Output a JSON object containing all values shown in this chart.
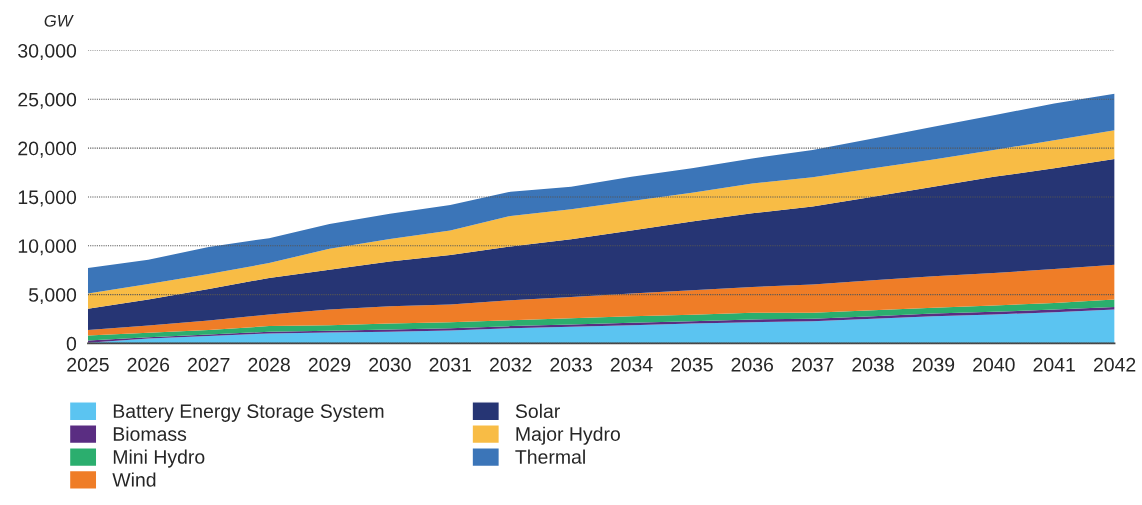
{
  "chart_data": {
    "type": "area",
    "stacked": true,
    "ylabel": "GW",
    "x": [
      2025,
      2026,
      2027,
      2028,
      2029,
      2030,
      2031,
      2032,
      2033,
      2034,
      2035,
      2036,
      2037,
      2038,
      2039,
      2040,
      2041,
      2042
    ],
    "series": [
      {
        "name": "Battery Energy Storage System",
        "color": "#5bc4f1",
        "values": [
          70,
          510,
          750,
          1020,
          1120,
          1190,
          1330,
          1560,
          1700,
          1870,
          2040,
          2170,
          2280,
          2520,
          2790,
          2960,
          3190,
          3470
        ]
      },
      {
        "name": "Biomass",
        "color": "#5a2d82",
        "values": [
          230,
          130,
          170,
          170,
          170,
          240,
          230,
          210,
          240,
          240,
          240,
          280,
          240,
          270,
          270,
          270,
          280,
          270
        ]
      },
      {
        "name": "Mini Hydro",
        "color": "#2bae6e",
        "values": [
          520,
          450,
          440,
          580,
          580,
          610,
          610,
          610,
          640,
          680,
          650,
          680,
          610,
          610,
          580,
          650,
          680,
          750
        ]
      },
      {
        "name": "Wind",
        "color": "#ef7d27",
        "values": [
          540,
          750,
          990,
          1190,
          1600,
          1770,
          1810,
          2040,
          2180,
          2310,
          2510,
          2650,
          2890,
          3060,
          3230,
          3330,
          3470,
          3570
        ]
      },
      {
        "name": "Solar",
        "color": "#263574",
        "values": [
          2180,
          2650,
          3230,
          3740,
          4080,
          4590,
          5070,
          5510,
          5920,
          6460,
          7040,
          7550,
          7990,
          8570,
          9180,
          9860,
          10310,
          10820
        ]
      },
      {
        "name": "Major Hydro",
        "color": "#f8bc45",
        "values": [
          1560,
          1600,
          1530,
          1530,
          2150,
          2300,
          2510,
          3130,
          3060,
          3030,
          2960,
          3060,
          3000,
          2900,
          2790,
          2730,
          2890,
          2960
        ]
      },
      {
        "name": "Thermal",
        "color": "#3b75b8",
        "values": [
          2620,
          2480,
          2760,
          2550,
          2540,
          2570,
          2620,
          2480,
          2310,
          2480,
          2490,
          2560,
          2790,
          3060,
          3340,
          3570,
          3740,
          3740
        ]
      }
    ],
    "xlim": [
      2025,
      2042
    ],
    "xticks": [
      2025,
      2026,
      2027,
      2028,
      2029,
      2030,
      2031,
      2032,
      2033,
      2034,
      2035,
      2036,
      2037,
      2038,
      2039,
      2040,
      2041,
      2042
    ],
    "ylim": [
      0,
      30000
    ],
    "yticks": [
      {
        "value": 0,
        "label": "0"
      },
      {
        "value": 5000,
        "label": "5,000"
      },
      {
        "value": 10000,
        "label": "10,000"
      },
      {
        "value": 15000,
        "label": "15,000"
      },
      {
        "value": 20000,
        "label": "20,000"
      },
      {
        "value": 25000,
        "label": "25,000"
      },
      {
        "value": 30000,
        "label": "30,000"
      }
    ],
    "grid": "y",
    "legend": "bottom"
  }
}
